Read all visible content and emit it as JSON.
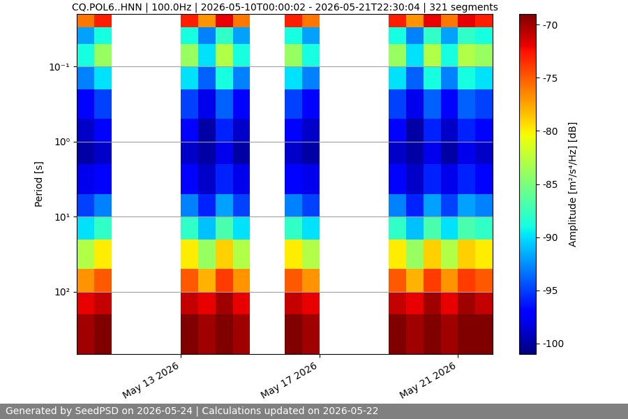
{
  "chart_data": {
    "type": "heatmap",
    "title": "CQ.POL6..HNN | 100.0Hz | 2026-05-10T00:00:02 - 2026-05-21T22:30:04 | 321 segments",
    "ylabel": "Period [s]",
    "colorbar_label": "Amplitude [m²/s⁴/Hz] [dB]",
    "footer": "Generated by SeedPSD on 2026-05-24 | Calculations updated on 2026-05-22",
    "color": "jet",
    "log": "y",
    "grid": "y",
    "x_edges": [
      "2026-05-10T00:00",
      "2026-05-10T12:00",
      "2026-05-11T00:00",
      "2026-05-11T12:00",
      "2026-05-12T00:00",
      "2026-05-12T12:00",
      "2026-05-13T00:00",
      "2026-05-13T12:00",
      "2026-05-14T00:00",
      "2026-05-14T12:00",
      "2026-05-15T00:00",
      "2026-05-15T12:00",
      "2026-05-16T00:00",
      "2026-05-16T12:00",
      "2026-05-17T00:00",
      "2026-05-17T12:00",
      "2026-05-18T00:00",
      "2026-05-18T12:00",
      "2026-05-19T00:00",
      "2026-05-19T12:00",
      "2026-05-20T00:00",
      "2026-05-20T12:00",
      "2026-05-21T00:00",
      "2026-05-21T12:00",
      "2026-05-22T00:00"
    ],
    "y_edges": [
      0.02,
      0.03,
      0.05,
      0.1,
      0.2,
      0.5,
      1,
      2,
      5,
      10,
      20,
      50,
      100,
      200,
      676
    ],
    "cells": [
      [
        -76,
        -73,
        null,
        null,
        null,
        null,
        -73,
        -77,
        -72,
        -76,
        null,
        null,
        -73,
        -76,
        null,
        null,
        null,
        null,
        -73,
        -77,
        -72,
        -76,
        -72,
        -73
      ],
      [
        -92,
        -89,
        null,
        null,
        null,
        null,
        -89,
        -93,
        -88,
        -92,
        null,
        null,
        -89,
        -92,
        null,
        null,
        null,
        null,
        -89,
        -93,
        -88,
        -92,
        -88,
        -89
      ],
      [
        -89,
        -84,
        null,
        null,
        null,
        null,
        -84,
        -90,
        -83,
        -89,
        null,
        null,
        -84,
        -89,
        null,
        null,
        null,
        null,
        -84,
        -90,
        -83,
        -89,
        -83,
        -84
      ],
      [
        -93,
        -90,
        null,
        null,
        null,
        null,
        -90,
        -94,
        -89,
        -93,
        null,
        null,
        -90,
        -93,
        null,
        null,
        null,
        null,
        -90,
        -94,
        -89,
        -93,
        -89,
        -90
      ],
      [
        -97,
        -95,
        null,
        null,
        null,
        null,
        -95,
        -98,
        -94,
        -97,
        null,
        null,
        -95,
        -97,
        null,
        null,
        null,
        null,
        -95,
        -98,
        -94,
        -97,
        -94,
        -95
      ],
      [
        -99,
        -97,
        null,
        null,
        null,
        null,
        -97,
        -100,
        -96,
        -99,
        null,
        null,
        -97,
        -99,
        null,
        null,
        null,
        null,
        -97,
        -100,
        -96,
        -99,
        -96,
        -97
      ],
      [
        -100,
        -99,
        null,
        null,
        null,
        null,
        -99,
        -100,
        -98,
        -100,
        null,
        null,
        -99,
        -100,
        null,
        null,
        null,
        null,
        -99,
        -100,
        -98,
        -100,
        -98,
        -99
      ],
      [
        -98,
        -97,
        null,
        null,
        null,
        null,
        -97,
        -99,
        -96,
        -98,
        null,
        null,
        -97,
        -98,
        null,
        null,
        null,
        null,
        -97,
        -99,
        -96,
        -98,
        -96,
        -97
      ],
      [
        -95,
        -93,
        null,
        null,
        null,
        null,
        -93,
        -96,
        -92,
        -95,
        null,
        null,
        -93,
        -95,
        null,
        null,
        null,
        null,
        -93,
        -96,
        -92,
        -95,
        -92,
        -93
      ],
      [
        -90,
        -88,
        null,
        null,
        null,
        null,
        -88,
        -91,
        -87,
        -90,
        null,
        null,
        -88,
        -90,
        null,
        null,
        null,
        null,
        -88,
        -91,
        -87,
        -90,
        -87,
        -88
      ],
      [
        -83,
        -80,
        null,
        null,
        null,
        null,
        -80,
        -84,
        -79,
        -83,
        null,
        null,
        -80,
        -83,
        null,
        null,
        null,
        null,
        -80,
        -84,
        -79,
        -83,
        -79,
        -80
      ],
      [
        -77,
        -75,
        null,
        null,
        null,
        null,
        -75,
        -78,
        -74,
        -77,
        null,
        null,
        -75,
        -77,
        null,
        null,
        null,
        null,
        -75,
        -78,
        -74,
        -77,
        -74,
        -75
      ],
      [
        -72,
        -71,
        null,
        null,
        null,
        null,
        -71,
        -72,
        -70,
        -72,
        null,
        null,
        -71,
        -72,
        null,
        null,
        null,
        null,
        -71,
        -72,
        -70,
        -72,
        -70,
        -71
      ],
      [
        -70,
        -69,
        null,
        null,
        null,
        null,
        -69,
        -70,
        -69,
        -70,
        null,
        null,
        -69,
        -70,
        null,
        null,
        null,
        null,
        -69,
        -70,
        -69,
        -70,
        -69,
        -69
      ]
    ],
    "xlim": [
      "2026-05-10T00:00",
      "2026-05-22T00:00"
    ],
    "xticks": [
      {
        "value": "2026-05-13T00:00",
        "label": "May 13 2026"
      },
      {
        "value": "2026-05-17T00:00",
        "label": "May 17 2026"
      },
      {
        "value": "2026-05-21T00:00",
        "label": "May 21 2026"
      }
    ],
    "ylim": [
      676,
      0.02
    ],
    "yticks": [
      {
        "value": 0.1,
        "label": "10⁻¹"
      },
      {
        "value": 1,
        "label": "10⁰"
      },
      {
        "value": 10,
        "label": "10¹"
      },
      {
        "value": 100,
        "label": "10²"
      }
    ],
    "clim": [
      -101,
      -69
    ],
    "cticks": [
      -100,
      -95,
      -90,
      -85,
      -80,
      -75,
      -70
    ]
  }
}
